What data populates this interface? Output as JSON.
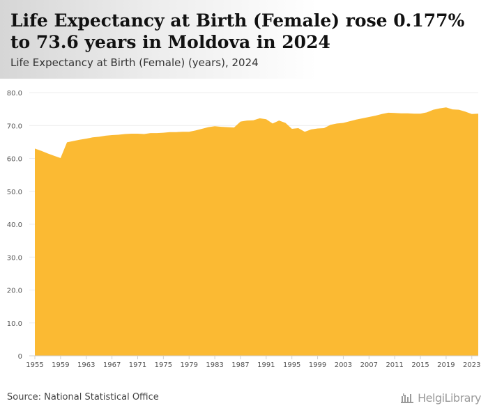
{
  "header": {
    "title": "Life Expectancy at Birth (Female) rose 0.177% to 73.6 years in Moldova in 2024",
    "subtitle": "Life Expectancy at Birth (Female) (years), 2024"
  },
  "footer": {
    "source": "Source: National Statistical Office",
    "logo_text": "HelgiLibrary"
  },
  "colors": {
    "area": "#fbba33",
    "grid": "#ececec",
    "axis_text": "#555555"
  },
  "chart_data": {
    "type": "area",
    "title": "Life Expectancy at Birth (Female) rose 0.177% to 73.6 years in Moldova in 2024",
    "ylabel": "years",
    "xlabel": "",
    "ylim": [
      0,
      80
    ],
    "yticks": [
      0,
      10,
      20,
      30,
      40,
      50,
      60,
      70,
      80
    ],
    "ytick_labels": [
      "0",
      "10.0",
      "20.0",
      "30.0",
      "40.0",
      "50.0",
      "60.0",
      "70.0",
      "80.0"
    ],
    "xticks": [
      1955,
      1959,
      1963,
      1967,
      1971,
      1975,
      1979,
      1983,
      1987,
      1991,
      1995,
      1999,
      2003,
      2007,
      2011,
      2015,
      2019,
      2023
    ],
    "grid": true,
    "legend": "none",
    "series": [
      {
        "name": "Life Expectancy at Birth (Female)",
        "x": [
          1955,
          1956,
          1957,
          1958,
          1959,
          1960,
          1961,
          1962,
          1963,
          1964,
          1965,
          1966,
          1967,
          1968,
          1969,
          1970,
          1971,
          1972,
          1973,
          1974,
          1975,
          1976,
          1977,
          1978,
          1979,
          1980,
          1981,
          1982,
          1983,
          1984,
          1985,
          1986,
          1987,
          1988,
          1989,
          1990,
          1991,
          1992,
          1993,
          1994,
          1995,
          1996,
          1997,
          1998,
          1999,
          2000,
          2001,
          2002,
          2003,
          2004,
          2005,
          2006,
          2007,
          2008,
          2009,
          2010,
          2011,
          2012,
          2013,
          2014,
          2015,
          2016,
          2017,
          2018,
          2019,
          2020,
          2021,
          2022,
          2023,
          2024
        ],
        "values": [
          63.0,
          62.3,
          61.5,
          60.8,
          60.1,
          64.9,
          65.3,
          65.7,
          66.0,
          66.4,
          66.6,
          66.9,
          67.1,
          67.2,
          67.4,
          67.5,
          67.5,
          67.4,
          67.7,
          67.7,
          67.8,
          68.0,
          68.0,
          68.1,
          68.1,
          68.5,
          69.0,
          69.5,
          69.8,
          69.6,
          69.5,
          69.4,
          71.2,
          71.5,
          71.6,
          72.2,
          71.9,
          70.6,
          71.5,
          70.8,
          69.0,
          69.2,
          68.1,
          68.8,
          69.1,
          69.2,
          70.2,
          70.6,
          70.8,
          71.3,
          71.8,
          72.2,
          72.6,
          73.0,
          73.5,
          73.9,
          73.8,
          73.7,
          73.7,
          73.6,
          73.6,
          74.0,
          74.8,
          75.2,
          75.5,
          74.9,
          74.8,
          74.2,
          73.5,
          73.6
        ]
      }
    ]
  }
}
